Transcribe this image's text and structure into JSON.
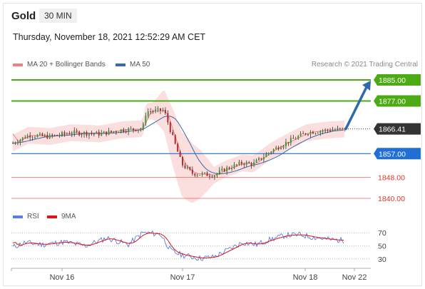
{
  "header": {
    "instrument": "Gold",
    "timeframe": "30 MIN",
    "timestamp": "Thursday, November 18, 2021 12:52:29 AM CET"
  },
  "legend": {
    "bollinger": "MA 20 + Bollinger Bands",
    "ma50": "MA 50",
    "research": "Research © 2021 Trading Central"
  },
  "rsi_legend": {
    "rsi": "RSI",
    "ma": "9MA"
  },
  "colors": {
    "bull": "#3a9a36",
    "bear": "#b2292e",
    "resistance": "#4caa14",
    "pivot": "#1f6fd6",
    "support": "#e0342c",
    "bollinger": "#f4a3a3",
    "ma50": "#3a6aa6",
    "arrow": "#2f6aa8",
    "rsi": "#5a7de0",
    "rsi_ma": "#e01414",
    "current": "#333333"
  },
  "chart_data": {
    "type": "candlestick",
    "instrument": "Gold",
    "timeframe": "30 MIN",
    "ylim": [
      1836,
      1889
    ],
    "x_ticks": [
      "Nov 16",
      "Nov 17",
      "Nov 18",
      "Nov 22"
    ],
    "price_levels": [
      {
        "label": "1885.00",
        "value": 1885.0,
        "kind": "resistance"
      },
      {
        "label": "1877.00",
        "value": 1877.0,
        "kind": "resistance"
      },
      {
        "label": "1866.41",
        "value": 1866.41,
        "kind": "current"
      },
      {
        "label": "1857.00",
        "value": 1857.0,
        "kind": "pivot"
      },
      {
        "label": "1848.00",
        "value": 1848.0,
        "kind": "support"
      },
      {
        "label": "1840.00",
        "value": 1840.0,
        "kind": "support"
      }
    ],
    "forecast": {
      "from": 1866.41,
      "to": 1885.0,
      "direction": "up"
    },
    "rsi": {
      "levels": [
        "70",
        "50",
        "30"
      ],
      "level_values": [
        70,
        50,
        30
      ],
      "ylim": [
        20,
        80
      ]
    }
  }
}
